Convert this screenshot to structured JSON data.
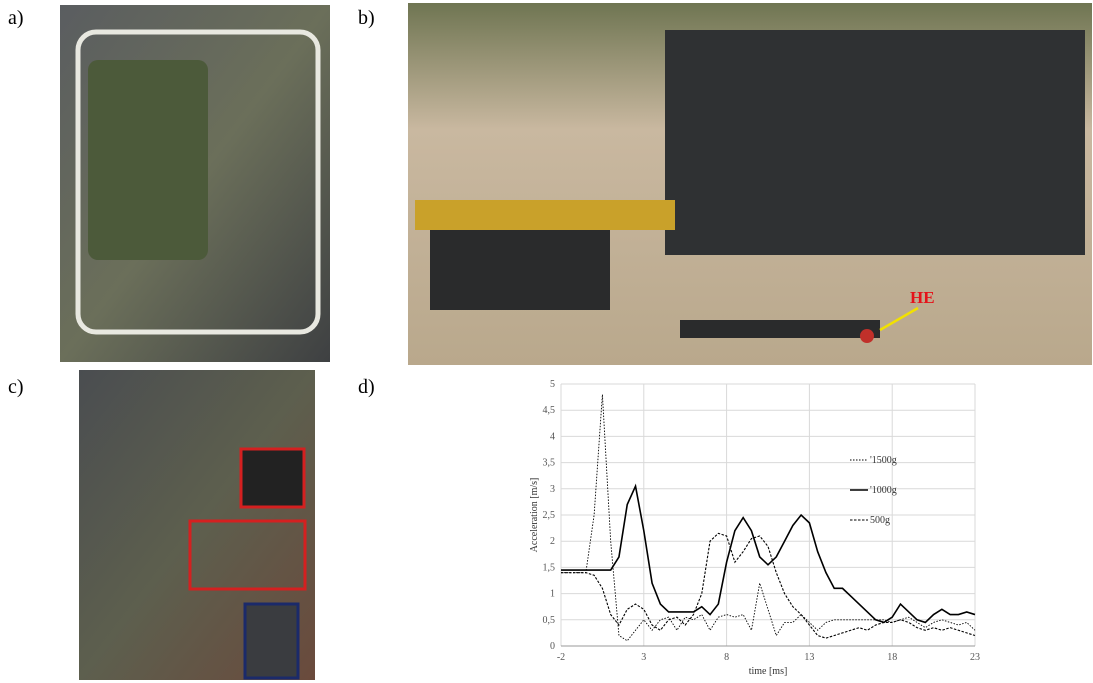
{
  "panels": {
    "a": "a)",
    "b": "b)",
    "c": "c)",
    "d": "d)"
  },
  "photo_b_annotation": "HE",
  "chart_data": {
    "type": "line",
    "xlabel": "time [ms]",
    "ylabel": "Acceleration [m/s]",
    "xlim": [
      -2,
      23
    ],
    "xticks": [
      -2,
      3,
      8,
      13,
      18,
      23
    ],
    "ylim": [
      0,
      5
    ],
    "yticks": [
      0,
      {
        "value": 0.5,
        "label": "0,5"
      },
      1,
      {
        "value": 1.5,
        "label": "1,5"
      },
      2,
      {
        "value": 2.5,
        "label": "2,5"
      },
      3,
      {
        "value": 3.5,
        "label": "3,5"
      },
      4,
      {
        "value": 4.5,
        "label": "4,5"
      },
      5
    ],
    "grid": true,
    "legend": "right",
    "x": [
      -2,
      -1.5,
      -1,
      -0.5,
      0,
      0.5,
      1,
      1.5,
      2,
      2.5,
      3,
      3.5,
      4,
      4.5,
      5,
      5.5,
      6,
      6.5,
      7,
      7.5,
      8,
      8.5,
      9,
      9.5,
      10,
      10.5,
      11,
      11.5,
      12,
      12.5,
      13,
      13.5,
      14,
      14.5,
      15,
      15.5,
      16,
      16.5,
      17,
      17.5,
      18,
      18.5,
      19,
      19.5,
      20,
      20.5,
      21,
      21.5,
      22,
      22.5,
      23
    ],
    "series": [
      {
        "name": "'1500g",
        "color": "#000000",
        "style": "dotted",
        "values": [
          1.4,
          1.4,
          1.4,
          1.4,
          2.5,
          4.8,
          2.0,
          0.2,
          0.1,
          0.3,
          0.5,
          0.3,
          0.5,
          0.55,
          0.3,
          0.55,
          0.5,
          0.6,
          0.3,
          0.55,
          0.6,
          0.55,
          0.6,
          0.3,
          1.2,
          0.7,
          0.2,
          0.45,
          0.45,
          0.6,
          0.45,
          0.3,
          0.45,
          0.5,
          0.5,
          0.5,
          0.5,
          0.5,
          0.5,
          0.5,
          0.45,
          0.5,
          0.55,
          0.45,
          0.35,
          0.45,
          0.5,
          0.45,
          0.4,
          0.45,
          0.3
        ]
      },
      {
        "name": "'1000g",
        "color": "#000000",
        "style": "solid",
        "values": [
          1.45,
          1.45,
          1.45,
          1.45,
          1.45,
          1.45,
          1.45,
          1.7,
          2.7,
          3.05,
          2.2,
          1.2,
          0.8,
          0.65,
          0.65,
          0.65,
          0.65,
          0.75,
          0.6,
          0.8,
          1.6,
          2.2,
          2.45,
          2.2,
          1.7,
          1.55,
          1.7,
          2.0,
          2.3,
          2.5,
          2.35,
          1.8,
          1.4,
          1.1,
          1.1,
          0.95,
          0.8,
          0.65,
          0.5,
          0.45,
          0.55,
          0.8,
          0.65,
          0.5,
          0.45,
          0.6,
          0.7,
          0.6,
          0.6,
          0.65,
          0.6
        ]
      },
      {
        "name": "500g",
        "color": "#000000",
        "style": "dashed",
        "values": [
          1.4,
          1.4,
          1.4,
          1.4,
          1.35,
          1.1,
          0.6,
          0.4,
          0.7,
          0.8,
          0.7,
          0.4,
          0.3,
          0.5,
          0.55,
          0.4,
          0.6,
          1.0,
          2.0,
          2.15,
          2.1,
          1.6,
          1.8,
          2.05,
          2.1,
          1.9,
          1.4,
          1.0,
          0.75,
          0.6,
          0.4,
          0.2,
          0.15,
          0.2,
          0.25,
          0.3,
          0.35,
          0.3,
          0.4,
          0.45,
          0.45,
          0.5,
          0.45,
          0.35,
          0.3,
          0.35,
          0.3,
          0.35,
          0.3,
          0.25,
          0.2
        ]
      }
    ]
  }
}
